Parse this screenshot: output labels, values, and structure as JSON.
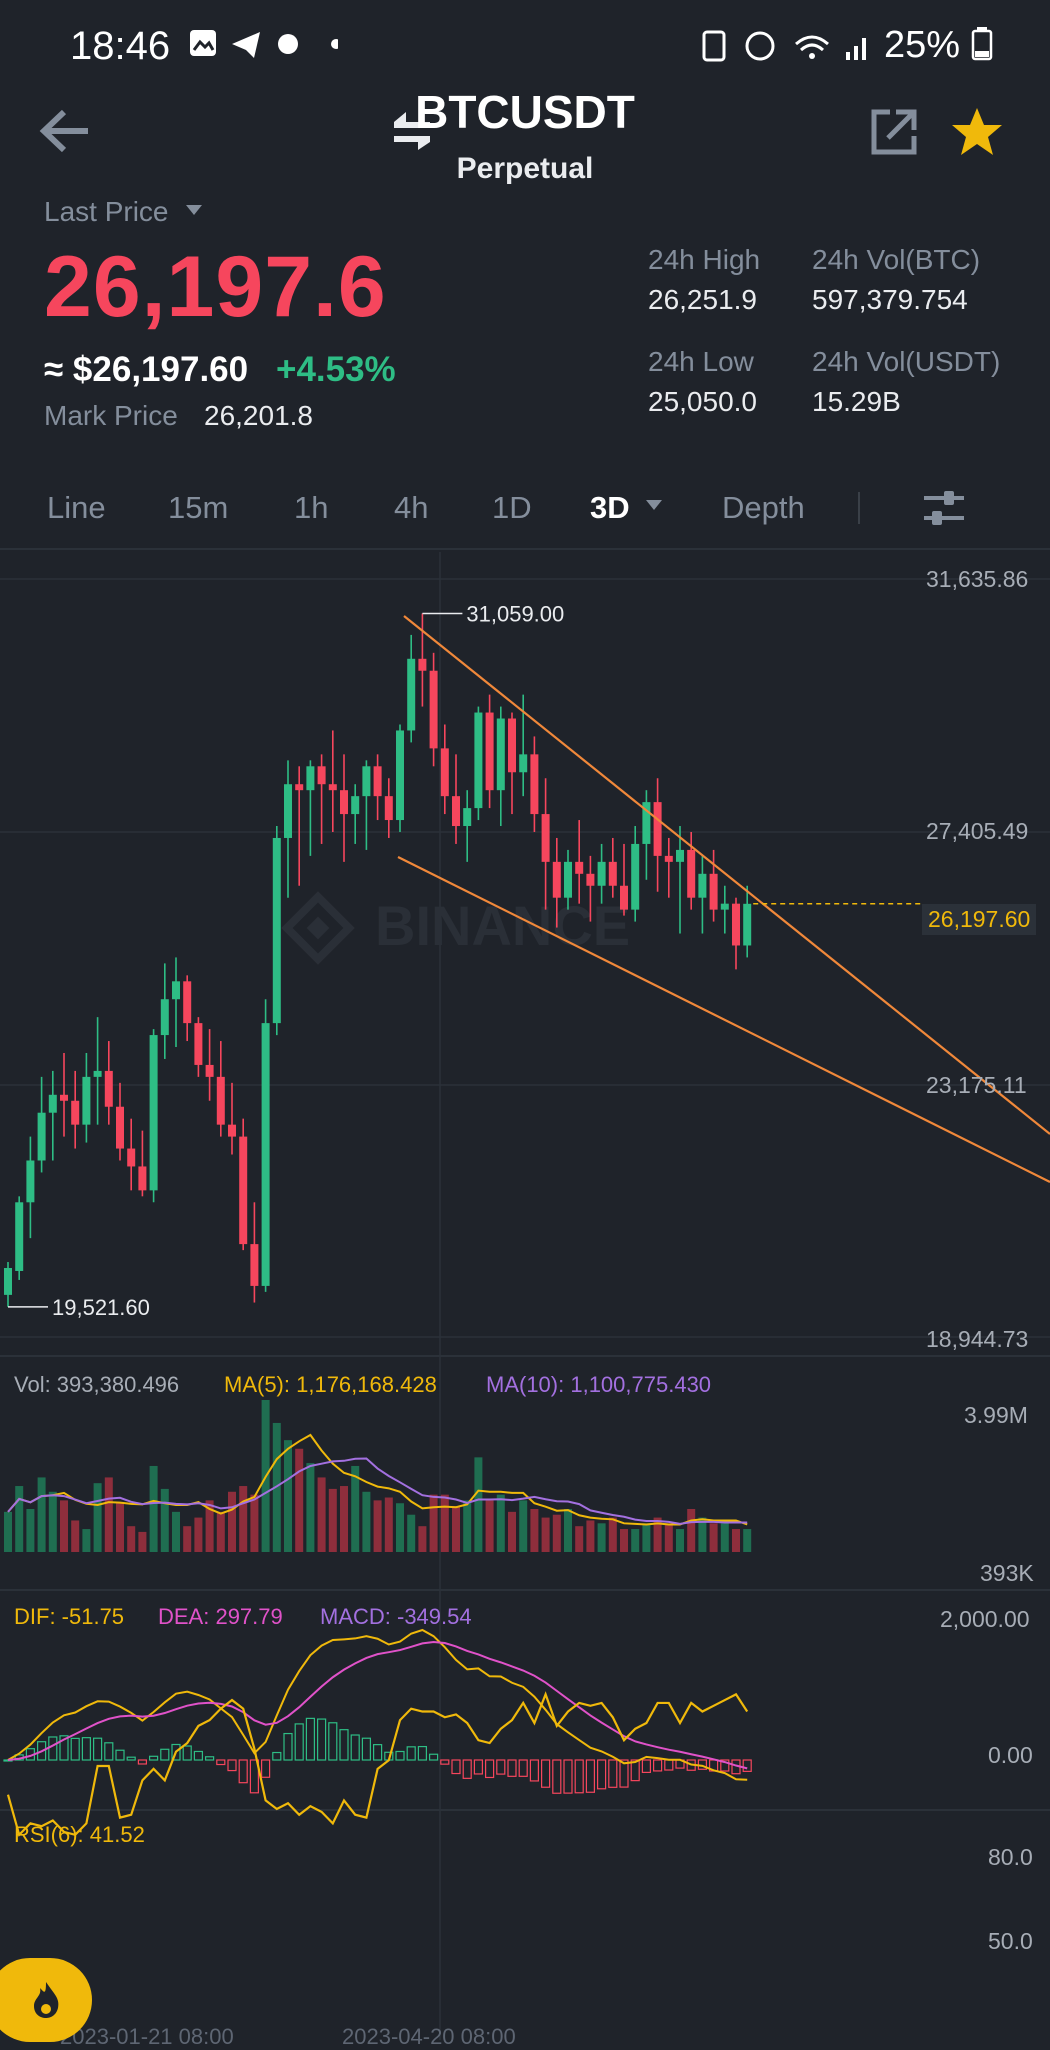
{
  "status_bar": {
    "time": "18:46",
    "battery": "25%"
  },
  "header": {
    "pair": "BTCUSDT",
    "contract": "Perpetual"
  },
  "price": {
    "last_price_label": "Last Price",
    "last_price": "26,197.6",
    "usd_value": "≈ $26,197.60",
    "change": "+4.53%",
    "mark_price_label": "Mark Price",
    "mark_price": "26,201.8"
  },
  "stats": {
    "high_label": "24h High",
    "high": "26,251.9",
    "vol_btc_label": "24h Vol(BTC)",
    "vol_btc": "597,379.754",
    "low_label": "24h Low",
    "low": "25,050.0",
    "vol_usdt_label": "24h Vol(USDT)",
    "vol_usdt": "15.29B"
  },
  "tabs": [
    "Line",
    "15m",
    "1h",
    "4h",
    "1D",
    "3D",
    "Depth"
  ],
  "active_tab": "3D",
  "colors": {
    "up": "#2ebd85",
    "down": "#f6465d",
    "accent": "#f0b90b",
    "trend": "#f0883a"
  },
  "chart": {
    "price_axis": [
      "31,635.86",
      "27,405.49",
      "23,175.11",
      "18,944.73"
    ],
    "high_marker": "31,059.00",
    "low_marker": "19,521.60",
    "current_price_tag": "26,197.60",
    "watermark": "BINANCE"
  },
  "volume": {
    "vol_label": "Vol: 393,380.496",
    "ma5_label": "MA(5): 1,176,168.428",
    "ma10_label": "MA(10): 1,100,775.430",
    "axis_top": "3.99M",
    "axis_bottom": "393K"
  },
  "macd": {
    "dif_label": "DIF: -51.75",
    "dea_label": "DEA: 297.79",
    "macd_label": "MACD: -349.54",
    "axis_top": "2,000.00",
    "axis_zero": "0.00"
  },
  "rsi": {
    "label": "RSI(6): 41.52",
    "axis_top": "80.0",
    "axis_mid": "50.0"
  },
  "time_axis": [
    "2023-01-21 08:00",
    "2023-04-20 08:00"
  ],
  "chart_data": {
    "type": "candlestick",
    "title": "",
    "xlabel": "",
    "ylabel": "",
    "ylim": [
      18944.73,
      31635.86
    ],
    "grid": true,
    "candles": [
      {
        "o": 19650,
        "h": 20200,
        "l": 19450,
        "c": 20100
      },
      {
        "o": 20050,
        "h": 21300,
        "l": 19900,
        "c": 21200
      },
      {
        "o": 21200,
        "h": 22300,
        "l": 20600,
        "c": 21900
      },
      {
        "o": 21900,
        "h": 23300,
        "l": 21700,
        "c": 22700
      },
      {
        "o": 22700,
        "h": 23400,
        "l": 21900,
        "c": 23000
      },
      {
        "o": 23000,
        "h": 23700,
        "l": 22300,
        "c": 22900
      },
      {
        "o": 22900,
        "h": 23400,
        "l": 22100,
        "c": 22500
      },
      {
        "o": 22500,
        "h": 23700,
        "l": 22200,
        "c": 23300
      },
      {
        "o": 23300,
        "h": 24300,
        "l": 22500,
        "c": 23400
      },
      {
        "o": 23400,
        "h": 23900,
        "l": 22500,
        "c": 22800
      },
      {
        "o": 22800,
        "h": 23200,
        "l": 21900,
        "c": 22100
      },
      {
        "o": 22100,
        "h": 22600,
        "l": 21400,
        "c": 21800
      },
      {
        "o": 21800,
        "h": 22400,
        "l": 21300,
        "c": 21400
      },
      {
        "o": 21400,
        "h": 24100,
        "l": 21200,
        "c": 24000
      },
      {
        "o": 24000,
        "h": 25200,
        "l": 23600,
        "c": 24600
      },
      {
        "o": 24600,
        "h": 25300,
        "l": 23800,
        "c": 24900
      },
      {
        "o": 24900,
        "h": 25000,
        "l": 23900,
        "c": 24200
      },
      {
        "o": 24200,
        "h": 24300,
        "l": 23300,
        "c": 23500
      },
      {
        "o": 23500,
        "h": 24100,
        "l": 22900,
        "c": 23300
      },
      {
        "o": 23300,
        "h": 23900,
        "l": 22300,
        "c": 22500
      },
      {
        "o": 22500,
        "h": 23200,
        "l": 22000,
        "c": 22300
      },
      {
        "o": 22300,
        "h": 22600,
        "l": 20400,
        "c": 20500
      },
      {
        "o": 20500,
        "h": 21200,
        "l": 19521.6,
        "c": 19800
      },
      {
        "o": 19800,
        "h": 24600,
        "l": 19700,
        "c": 24200
      },
      {
        "o": 24200,
        "h": 27500,
        "l": 24000,
        "c": 27300
      },
      {
        "o": 27300,
        "h": 28600,
        "l": 26300,
        "c": 28200
      },
      {
        "o": 28200,
        "h": 28500,
        "l": 26500,
        "c": 28100
      },
      {
        "o": 28100,
        "h": 28600,
        "l": 27000,
        "c": 28500
      },
      {
        "o": 28500,
        "h": 28700,
        "l": 27200,
        "c": 28200
      },
      {
        "o": 28200,
        "h": 29100,
        "l": 27400,
        "c": 28100
      },
      {
        "o": 28100,
        "h": 28700,
        "l": 26900,
        "c": 27700
      },
      {
        "o": 27700,
        "h": 28200,
        "l": 27200,
        "c": 28000
      },
      {
        "o": 28000,
        "h": 28600,
        "l": 27100,
        "c": 28500
      },
      {
        "o": 28500,
        "h": 28700,
        "l": 27600,
        "c": 28000
      },
      {
        "o": 28000,
        "h": 28300,
        "l": 27300,
        "c": 27600
      },
      {
        "o": 27600,
        "h": 29200,
        "l": 27400,
        "c": 29100
      },
      {
        "o": 29100,
        "h": 30700,
        "l": 28900,
        "c": 30300
      },
      {
        "o": 30300,
        "h": 31059,
        "l": 29500,
        "c": 30100
      },
      {
        "o": 30100,
        "h": 30400,
        "l": 28500,
        "c": 28800
      },
      {
        "o": 28800,
        "h": 29200,
        "l": 27700,
        "c": 28000
      },
      {
        "o": 28000,
        "h": 28700,
        "l": 27200,
        "c": 27500
      },
      {
        "o": 27500,
        "h": 28100,
        "l": 26900,
        "c": 27800
      },
      {
        "o": 27800,
        "h": 29500,
        "l": 27600,
        "c": 29400
      },
      {
        "o": 29400,
        "h": 29700,
        "l": 27800,
        "c": 28100
      },
      {
        "o": 28100,
        "h": 29500,
        "l": 27500,
        "c": 29300
      },
      {
        "o": 29300,
        "h": 29400,
        "l": 27700,
        "c": 28400
      },
      {
        "o": 28400,
        "h": 29700,
        "l": 28000,
        "c": 28700
      },
      {
        "o": 28700,
        "h": 29000,
        "l": 27400,
        "c": 27700
      },
      {
        "o": 27700,
        "h": 28300,
        "l": 26100,
        "c": 26900
      },
      {
        "o": 26900,
        "h": 27300,
        "l": 25800,
        "c": 26300
      },
      {
        "o": 26300,
        "h": 27100,
        "l": 26100,
        "c": 26900
      },
      {
        "o": 26900,
        "h": 27600,
        "l": 26200,
        "c": 26700
      },
      {
        "o": 26700,
        "h": 27000,
        "l": 25900,
        "c": 26500
      },
      {
        "o": 26500,
        "h": 27200,
        "l": 26200,
        "c": 26900
      },
      {
        "o": 26900,
        "h": 27300,
        "l": 26300,
        "c": 26500
      },
      {
        "o": 26500,
        "h": 27200,
        "l": 26000,
        "c": 26100
      },
      {
        "o": 26100,
        "h": 27500,
        "l": 25900,
        "c": 27200
      },
      {
        "o": 27200,
        "h": 28100,
        "l": 26600,
        "c": 27900
      },
      {
        "o": 27900,
        "h": 28300,
        "l": 26400,
        "c": 27000
      },
      {
        "o": 27000,
        "h": 27300,
        "l": 26300,
        "c": 26900
      },
      {
        "o": 26900,
        "h": 27500,
        "l": 25700,
        "c": 27100
      },
      {
        "o": 27100,
        "h": 27400,
        "l": 26100,
        "c": 26300
      },
      {
        "o": 26300,
        "h": 27000,
        "l": 25700,
        "c": 26700
      },
      {
        "o": 26700,
        "h": 27100,
        "l": 25900,
        "c": 26100
      },
      {
        "o": 26100,
        "h": 26500,
        "l": 25700,
        "c": 26200
      },
      {
        "o": 26200,
        "h": 26300,
        "l": 25100,
        "c": 25500
      },
      {
        "o": 25500,
        "h": 26500,
        "l": 25300,
        "c": 26197.6
      }
    ],
    "volume": [
      14,
      23,
      15,
      26,
      21,
      18,
      11,
      8,
      24,
      26,
      17,
      9,
      7,
      30,
      22,
      14,
      9,
      12,
      18,
      14,
      21,
      23,
      20,
      53,
      45,
      39,
      36,
      31,
      26,
      22,
      23,
      30,
      21,
      18,
      19,
      17,
      13,
      9,
      20,
      20,
      16,
      18,
      33,
      18,
      20,
      14,
      18,
      15,
      12,
      13,
      15,
      9,
      11,
      10,
      12,
      8,
      8,
      10,
      12,
      10,
      8,
      15,
      12,
      10,
      10,
      8,
      8
    ],
    "rsi": [
      60,
      74,
      70,
      71,
      69,
      73,
      74,
      70,
      50,
      50,
      68,
      67,
      55,
      51,
      55,
      45,
      42,
      36,
      34,
      30,
      27,
      30,
      44,
      62,
      65,
      63,
      67,
      64,
      66,
      70,
      62,
      67,
      68,
      51,
      48,
      34,
      30,
      31,
      31,
      33,
      32,
      35,
      41,
      42,
      37,
      34,
      28,
      35,
      25,
      36,
      31,
      28,
      29,
      28,
      33,
      41,
      37,
      35,
      28,
      28,
      35,
      28,
      31,
      29,
      27,
      25,
      31
    ]
  }
}
